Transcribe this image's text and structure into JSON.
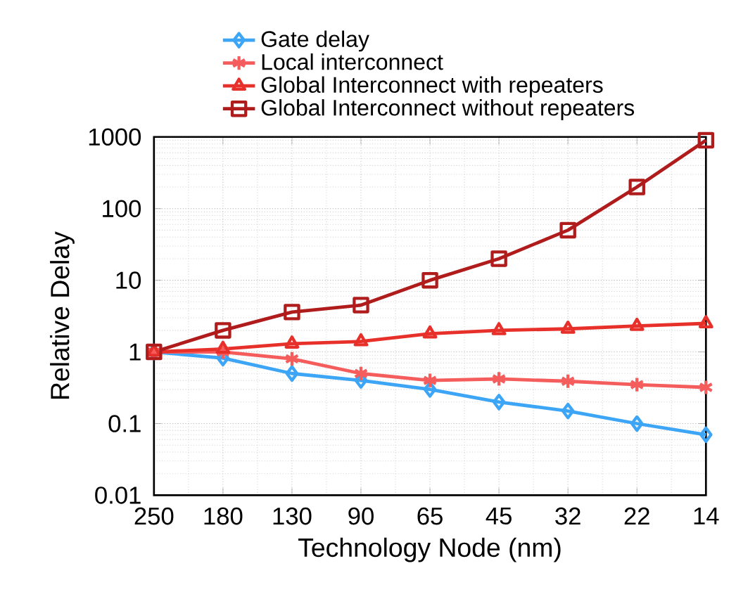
{
  "chart_data": {
    "type": "line",
    "xlabel": "Technology Node (nm)",
    "ylabel": "Relative Delay",
    "categories": [
      "250",
      "180",
      "130",
      "90",
      "65",
      "45",
      "32",
      "22",
      "14"
    ],
    "series": [
      {
        "name": "Gate delay",
        "color": "#3da5f5",
        "marker": "diamond",
        "values": [
          1,
          0.82,
          0.5,
          0.4,
          0.3,
          0.2,
          0.15,
          0.1,
          0.07
        ]
      },
      {
        "name": "Local interconnect",
        "color": "#f55d5d",
        "marker": "cross",
        "values": [
          1,
          1,
          0.8,
          0.5,
          0.4,
          0.42,
          0.39,
          0.35,
          0.32
        ]
      },
      {
        "name": "Global Interconnect with repeaters",
        "color": "#e8302a",
        "marker": "triangle",
        "values": [
          1,
          1.1,
          1.3,
          1.4,
          1.8,
          2.0,
          2.1,
          2.3,
          2.5
        ]
      },
      {
        "name": "Global Interconnect without repeaters",
        "color": "#b01c1c",
        "marker": "square",
        "values": [
          1,
          2,
          3.6,
          4.5,
          10,
          20,
          50,
          200,
          900
        ]
      }
    ],
    "log": "y",
    "ylim": [
      0.01,
      1000
    ],
    "yticks": [
      0.01,
      0.1,
      1,
      10,
      100,
      1000
    ],
    "grid": true,
    "legend": "top",
    "line_style": "solid"
  }
}
